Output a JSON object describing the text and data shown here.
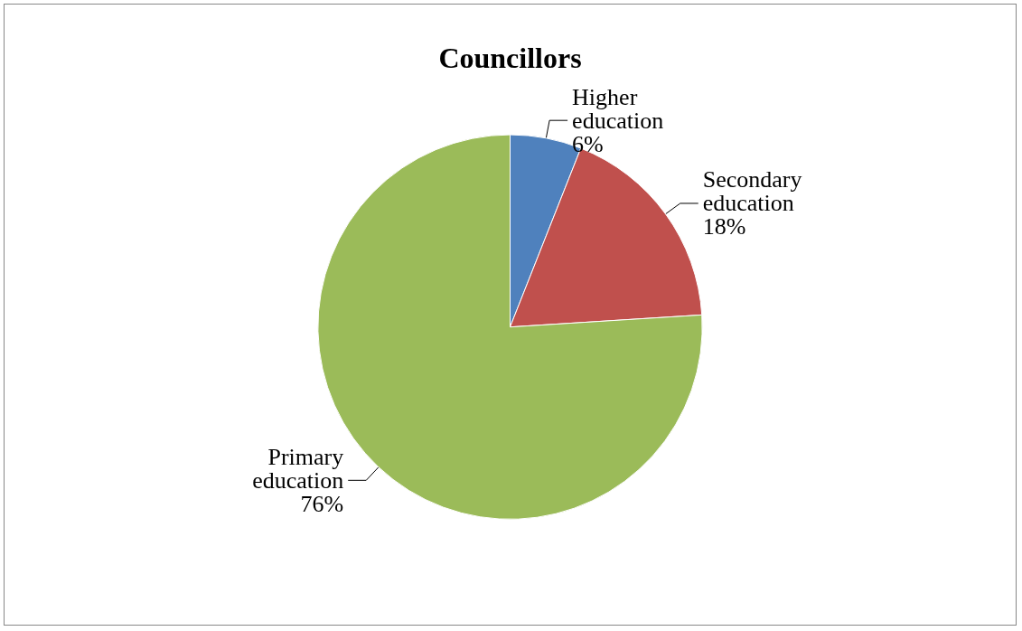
{
  "chart_data": {
    "type": "pie",
    "title": "Councillors",
    "categories": [
      "Higher\neducation",
      "Secondary\neducation",
      "Primary\neducation"
    ],
    "values": [
      6,
      18,
      76
    ],
    "colors": [
      "#4f81bd",
      "#c0504d",
      "#9bbb59"
    ],
    "value_labels": [
      "6%",
      "18%",
      "76%"
    ],
    "legend": false
  }
}
